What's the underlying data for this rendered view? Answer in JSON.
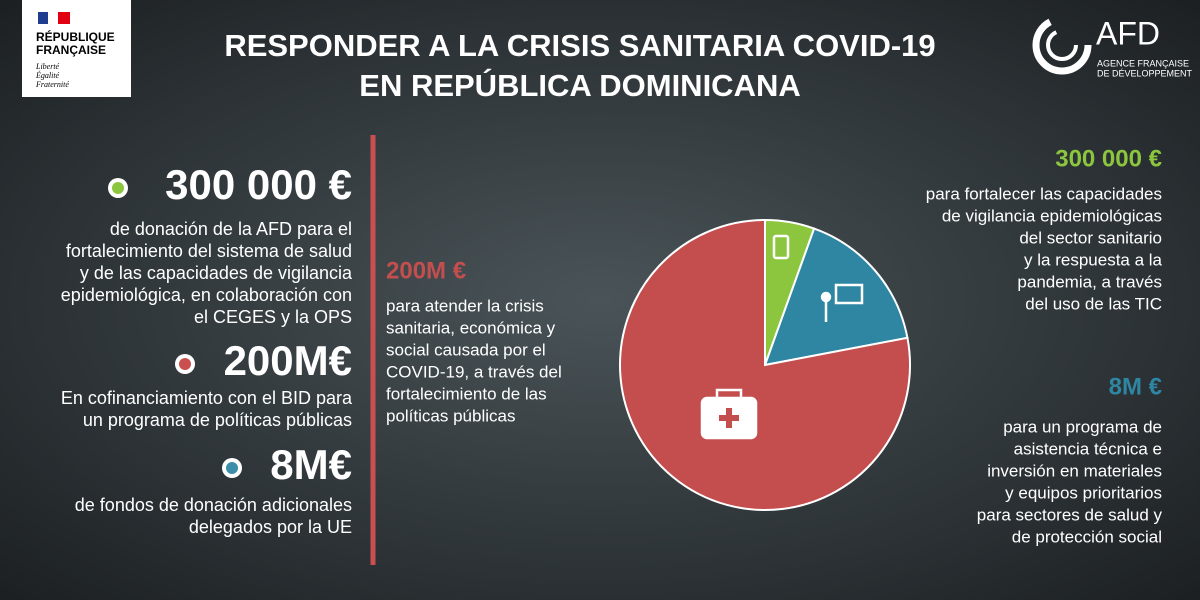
{
  "header": {
    "title": [
      "RESPONDER A LA CRISIS SANITARIA COVID-19",
      "EN REPÚBLICA DOMINICANA"
    ],
    "rf_logo": [
      "RÉPUBLIQUE",
      "FRANÇAISE"
    ],
    "rf_motto": [
      "Liberté",
      "Égalité",
      "Fraternité"
    ],
    "afd_logo": "AFD",
    "afd_subtitle": [
      "AGENCE FRANÇAISE",
      "DE DÉVELOPPEMENT"
    ]
  },
  "left_items": [
    {
      "amount": "300 000 €",
      "color": "#8cc63e",
      "text": [
        "de donación de la AFD para el",
        "fortalecimiento del sistema de salud",
        "y de las capacidades de vigilancia",
        "epidemiológica, en colaboración con",
        "el CEGES y la OPS"
      ]
    },
    {
      "amount": "200M€",
      "color": "#c9504f",
      "text": [
        "En cofinanciamiento con el BID para",
        "un programa de políticas públicas"
      ]
    },
    {
      "amount": "8M€",
      "color": "#3b8fa8",
      "text": [
        "de fondos de donación adicionales",
        "delegados por la UE"
      ]
    }
  ],
  "chart_data": {
    "type": "pie",
    "categories": [
      "300 000 €",
      "8M €",
      "200M €"
    ],
    "descriptions": [
      [
        "para fortalecer las  capacidades",
        "de vigilancia  epidemiológicas",
        "del sector sanitario",
        "y la respuesta a la",
        "pandemia, a través",
        "del uso de las TIC"
      ],
      [
        "para un programa de",
        "asistencia técnica e",
        "inversión en materiales",
        "y equipos prioritarios",
        "para sectores de salud y",
        "de protección social"
      ],
      [
        "para atender la crisis",
        "sanitaria, económica y",
        "social causada por el",
        "COVID-19, a través del",
        "fortalecimiento de las",
        "políticas públicas"
      ]
    ],
    "values": [
      5.5,
      16.5,
      78
    ],
    "colors": [
      "#8cc63e",
      "#2e86a3",
      "#c44e4e"
    ]
  }
}
